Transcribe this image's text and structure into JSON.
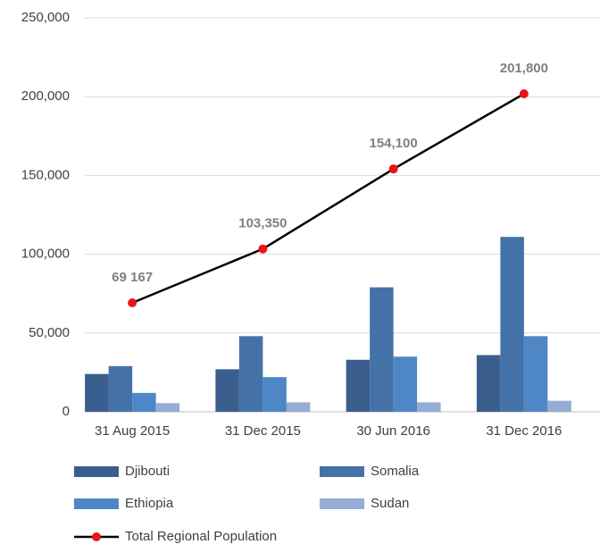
{
  "chart_data": {
    "type": "bar",
    "categories": [
      "31 Aug 2015",
      "31 Dec 2015",
      "30 Jun 2016",
      "31 Dec 2016"
    ],
    "series": [
      {
        "name": "Djibouti",
        "color": "#3a5f8f",
        "values": [
          24000,
          27000,
          33000,
          36000
        ]
      },
      {
        "name": "Somalia",
        "color": "#4472a8",
        "values": [
          29000,
          48000,
          79000,
          111000
        ]
      },
      {
        "name": "Ethiopia",
        "color": "#4f87c6",
        "values": [
          12000,
          22000,
          35000,
          48000
        ]
      },
      {
        "name": "Sudan",
        "color": "#96acd4",
        "values": [
          5500,
          6000,
          6000,
          7000
        ]
      },
      {
        "name": "Total Regional Population",
        "type": "line",
        "color": "#000000",
        "marker_color": "#e8141b",
        "values": [
          69167,
          103350,
          154100,
          201800
        ],
        "value_labels": [
          "69 167",
          "103,350",
          "154,100",
          "201,800"
        ]
      }
    ],
    "ylim": [
      0,
      250000
    ],
    "yticks": [
      0,
      {
        "value": 50000,
        "label": "50,000"
      },
      {
        "value": 100000,
        "label": "100,000"
      },
      {
        "value": 150000,
        "label": "150,000"
      },
      {
        "value": 200000,
        "label": "200,000"
      },
      {
        "value": 250000,
        "label": "250,000"
      }
    ],
    "grid": true
  }
}
